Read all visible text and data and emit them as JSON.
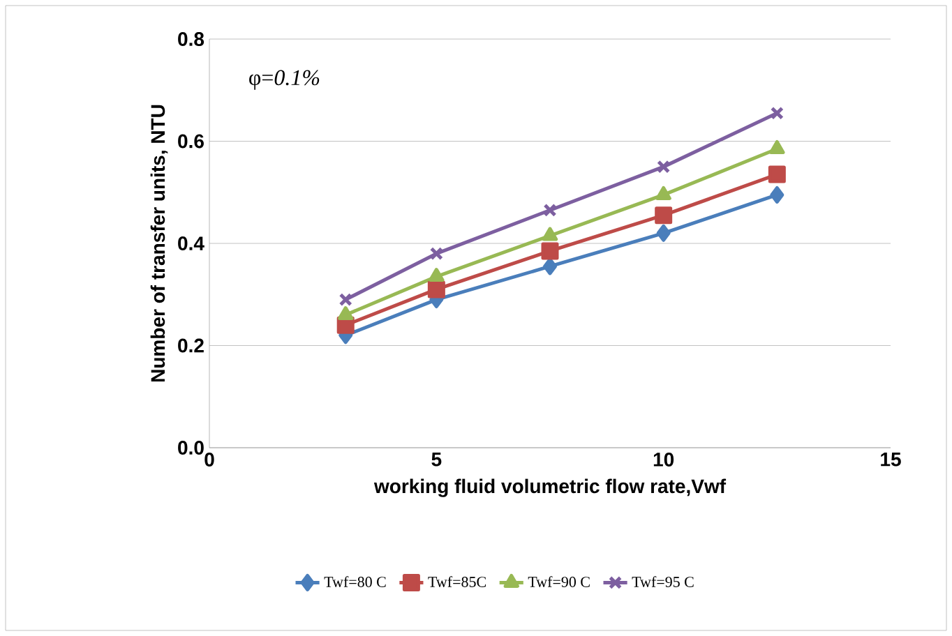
{
  "chart_data": {
    "type": "line",
    "xlabel": "working fluid volumetric flow rate,Vwf",
    "ylabel": "Number of transfer units, NTU",
    "annotations": [
      "φ=*0.1%*"
    ],
    "x": [
      3,
      5,
      7.5,
      10,
      12.5
    ],
    "series": [
      {
        "name": "Twf=80 C",
        "color": "#4a7ebb",
        "marker": "diamond",
        "values": [
          0.22,
          0.29,
          0.355,
          0.42,
          0.495
        ]
      },
      {
        "name": "Twf=85C",
        "color": "#be4b48",
        "marker": "square",
        "values": [
          0.24,
          0.31,
          0.385,
          0.455,
          0.535
        ]
      },
      {
        "name": "Twf=90 C",
        "color": "#98b954",
        "marker": "triangle",
        "values": [
          0.26,
          0.335,
          0.415,
          0.495,
          0.585
        ]
      },
      {
        "name": "Twf=95 C",
        "color": "#7d5fa0",
        "marker": "cross",
        "values": [
          0.29,
          0.38,
          0.465,
          0.55,
          0.655
        ]
      }
    ],
    "xlim": [
      0,
      15
    ],
    "xticks": [
      0,
      5,
      10,
      15
    ],
    "ylim": [
      0,
      0.8
    ],
    "yticks": [
      {
        "value": 0,
        "label": "0.0"
      },
      {
        "value": 0.2,
        "label": "0.2"
      },
      {
        "value": 0.4,
        "label": "0.4"
      },
      {
        "value": 0.6,
        "label": "0.6"
      },
      {
        "value": 0.8,
        "label": "0.8"
      }
    ],
    "grid": "y",
    "legend": "bottom",
    "line_style": "solid"
  }
}
